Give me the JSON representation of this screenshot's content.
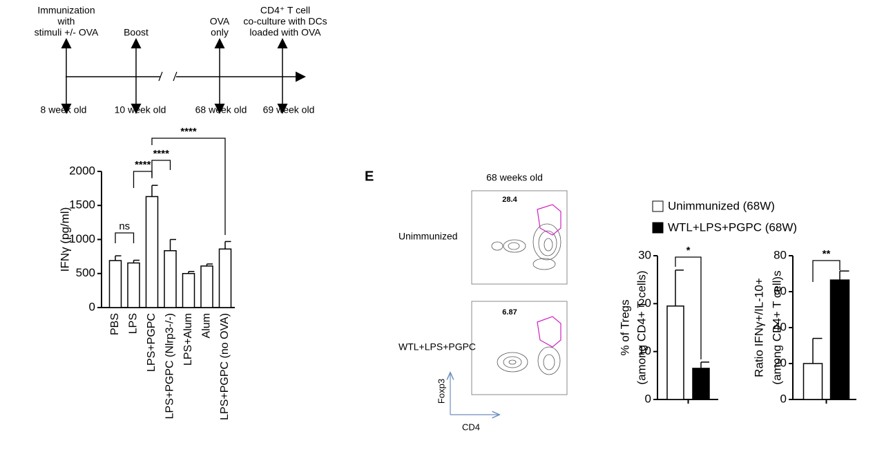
{
  "timeline": {
    "events": [
      {
        "top": [
          "Immunization",
          "with",
          "stimuli +/- OVA"
        ],
        "bottom": "8 week old"
      },
      {
        "top": [
          "Boost"
        ],
        "bottom": "10 week old"
      },
      {
        "top": [
          "OVA",
          "only"
        ],
        "bottom": "68 week old"
      },
      {
        "top": [
          "CD4⁺ T cell",
          "co-culture with DCs",
          "loaded with OVA"
        ],
        "bottom": "69 week old"
      }
    ]
  },
  "chart_data": [
    {
      "type": "bar",
      "y_label": [
        "IFNγ (pg/ml)"
      ],
      "categories": [
        "PBS",
        "LPS",
        "LPS+PGPC",
        "LPS+PGPC (Nlrp3-/-)",
        "LPS+Alum",
        "Alum",
        "LPS+PGPC (no OVA)"
      ],
      "values": [
        690,
        655,
        1630,
        835,
        500,
        610,
        860
      ],
      "errors": [
        70,
        40,
        165,
        165,
        30,
        30,
        110
      ],
      "colors": [
        "#ffffff",
        "#ffffff",
        "#ffffff",
        "#ffffff",
        "#ffffff",
        "#ffffff",
        "#ffffff"
      ],
      "ylim": [
        0,
        2000
      ],
      "yticks": [
        0,
        500,
        1000,
        1500,
        2000
      ],
      "significance": [
        {
          "from": 0,
          "to": 1,
          "label": "ns"
        },
        {
          "from": 1,
          "to": 2,
          "label": "****"
        },
        {
          "from": 2,
          "to": 3,
          "label": "****"
        },
        {
          "from": 2,
          "to": 6,
          "label": "****"
        }
      ]
    },
    {
      "type": "bar",
      "y_label": [
        "% of Tregs",
        "(among CD4+ T cells)"
      ],
      "categories": [
        null,
        null
      ],
      "values": [
        19.5,
        6.5
      ],
      "errors": [
        7.5,
        1.3
      ],
      "colors": [
        "#ffffff",
        "#000000"
      ],
      "ylim": [
        0,
        30
      ],
      "yticks": [
        0,
        10,
        20,
        30
      ],
      "significance": [
        {
          "from": 0,
          "to": 1,
          "label": "*"
        }
      ]
    },
    {
      "type": "bar",
      "y_label": [
        "Ratio IFNγ+/IL-10+",
        "(among CD4+ T cell)s"
      ],
      "categories": [
        null,
        null
      ],
      "values": [
        20,
        66.5
      ],
      "errors": [
        14,
        5
      ],
      "colors": [
        "#ffffff",
        "#000000"
      ],
      "ylim": [
        0,
        80
      ],
      "yticks": [
        0,
        20,
        40,
        60,
        80
      ],
      "significance": [
        {
          "from": 0,
          "to": 1,
          "label": "**"
        }
      ]
    }
  ],
  "legend": [
    {
      "name": "Unimmunized (68W)",
      "color": "#ffffff"
    },
    {
      "name": "WTL+LPS+PGPC (68W)",
      "color": "#000000"
    }
  ],
  "flow": {
    "panel": "E",
    "title": "68 weeks old",
    "rows": [
      {
        "label": "Unimmunized",
        "gate": 28.4
      },
      {
        "label": "WTL+LPS+PGPC",
        "gate": 6.87
      }
    ],
    "y_axis": "Foxp3",
    "x_axis": "CD4"
  }
}
